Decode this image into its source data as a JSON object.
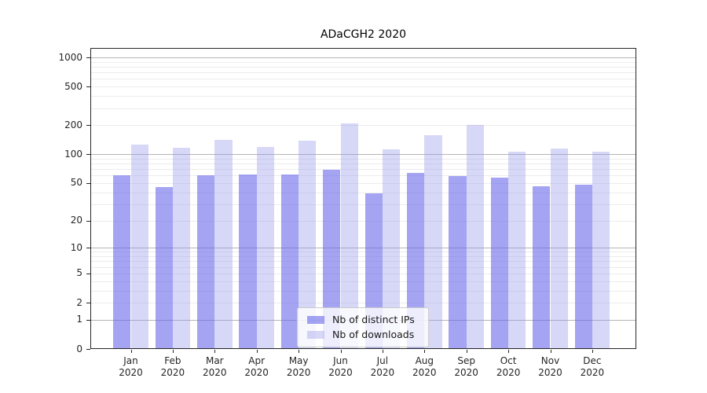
{
  "chart_data": {
    "type": "bar",
    "title": "ADaCGH2 2020",
    "categories": [
      "Jan",
      "Feb",
      "Mar",
      "Apr",
      "May",
      "Jun",
      "Jul",
      "Aug",
      "Sep",
      "Oct",
      "Nov",
      "Dec"
    ],
    "category_year": "2020",
    "series": [
      {
        "name": "Nb of distinct IPs",
        "color": "#a9a9f5",
        "values": [
          60,
          45,
          60,
          61,
          62,
          69,
          39,
          64,
          59,
          57,
          46,
          48
        ]
      },
      {
        "name": "Nb of downloads",
        "color": "#d8d8f7",
        "values": [
          126,
          116,
          140,
          120,
          138,
          210,
          113,
          158,
          200,
          106,
          114,
          107
        ]
      }
    ],
    "y_tick_labels": [
      1000,
      500,
      200,
      100,
      50,
      20,
      10,
      5,
      2,
      1,
      0
    ],
    "y_scale": "log1p",
    "ylim": [
      0,
      1000
    ],
    "grid": "horizontal, darker lines at decades 1/10/100/1000, faint minor lines",
    "legend_position": "inside-bottom-center",
    "colors": {
      "grid_major": "#b5b5b5",
      "grid_minor": "#ececec",
      "axis": "#262626",
      "legend_border": "#cccccc"
    }
  }
}
